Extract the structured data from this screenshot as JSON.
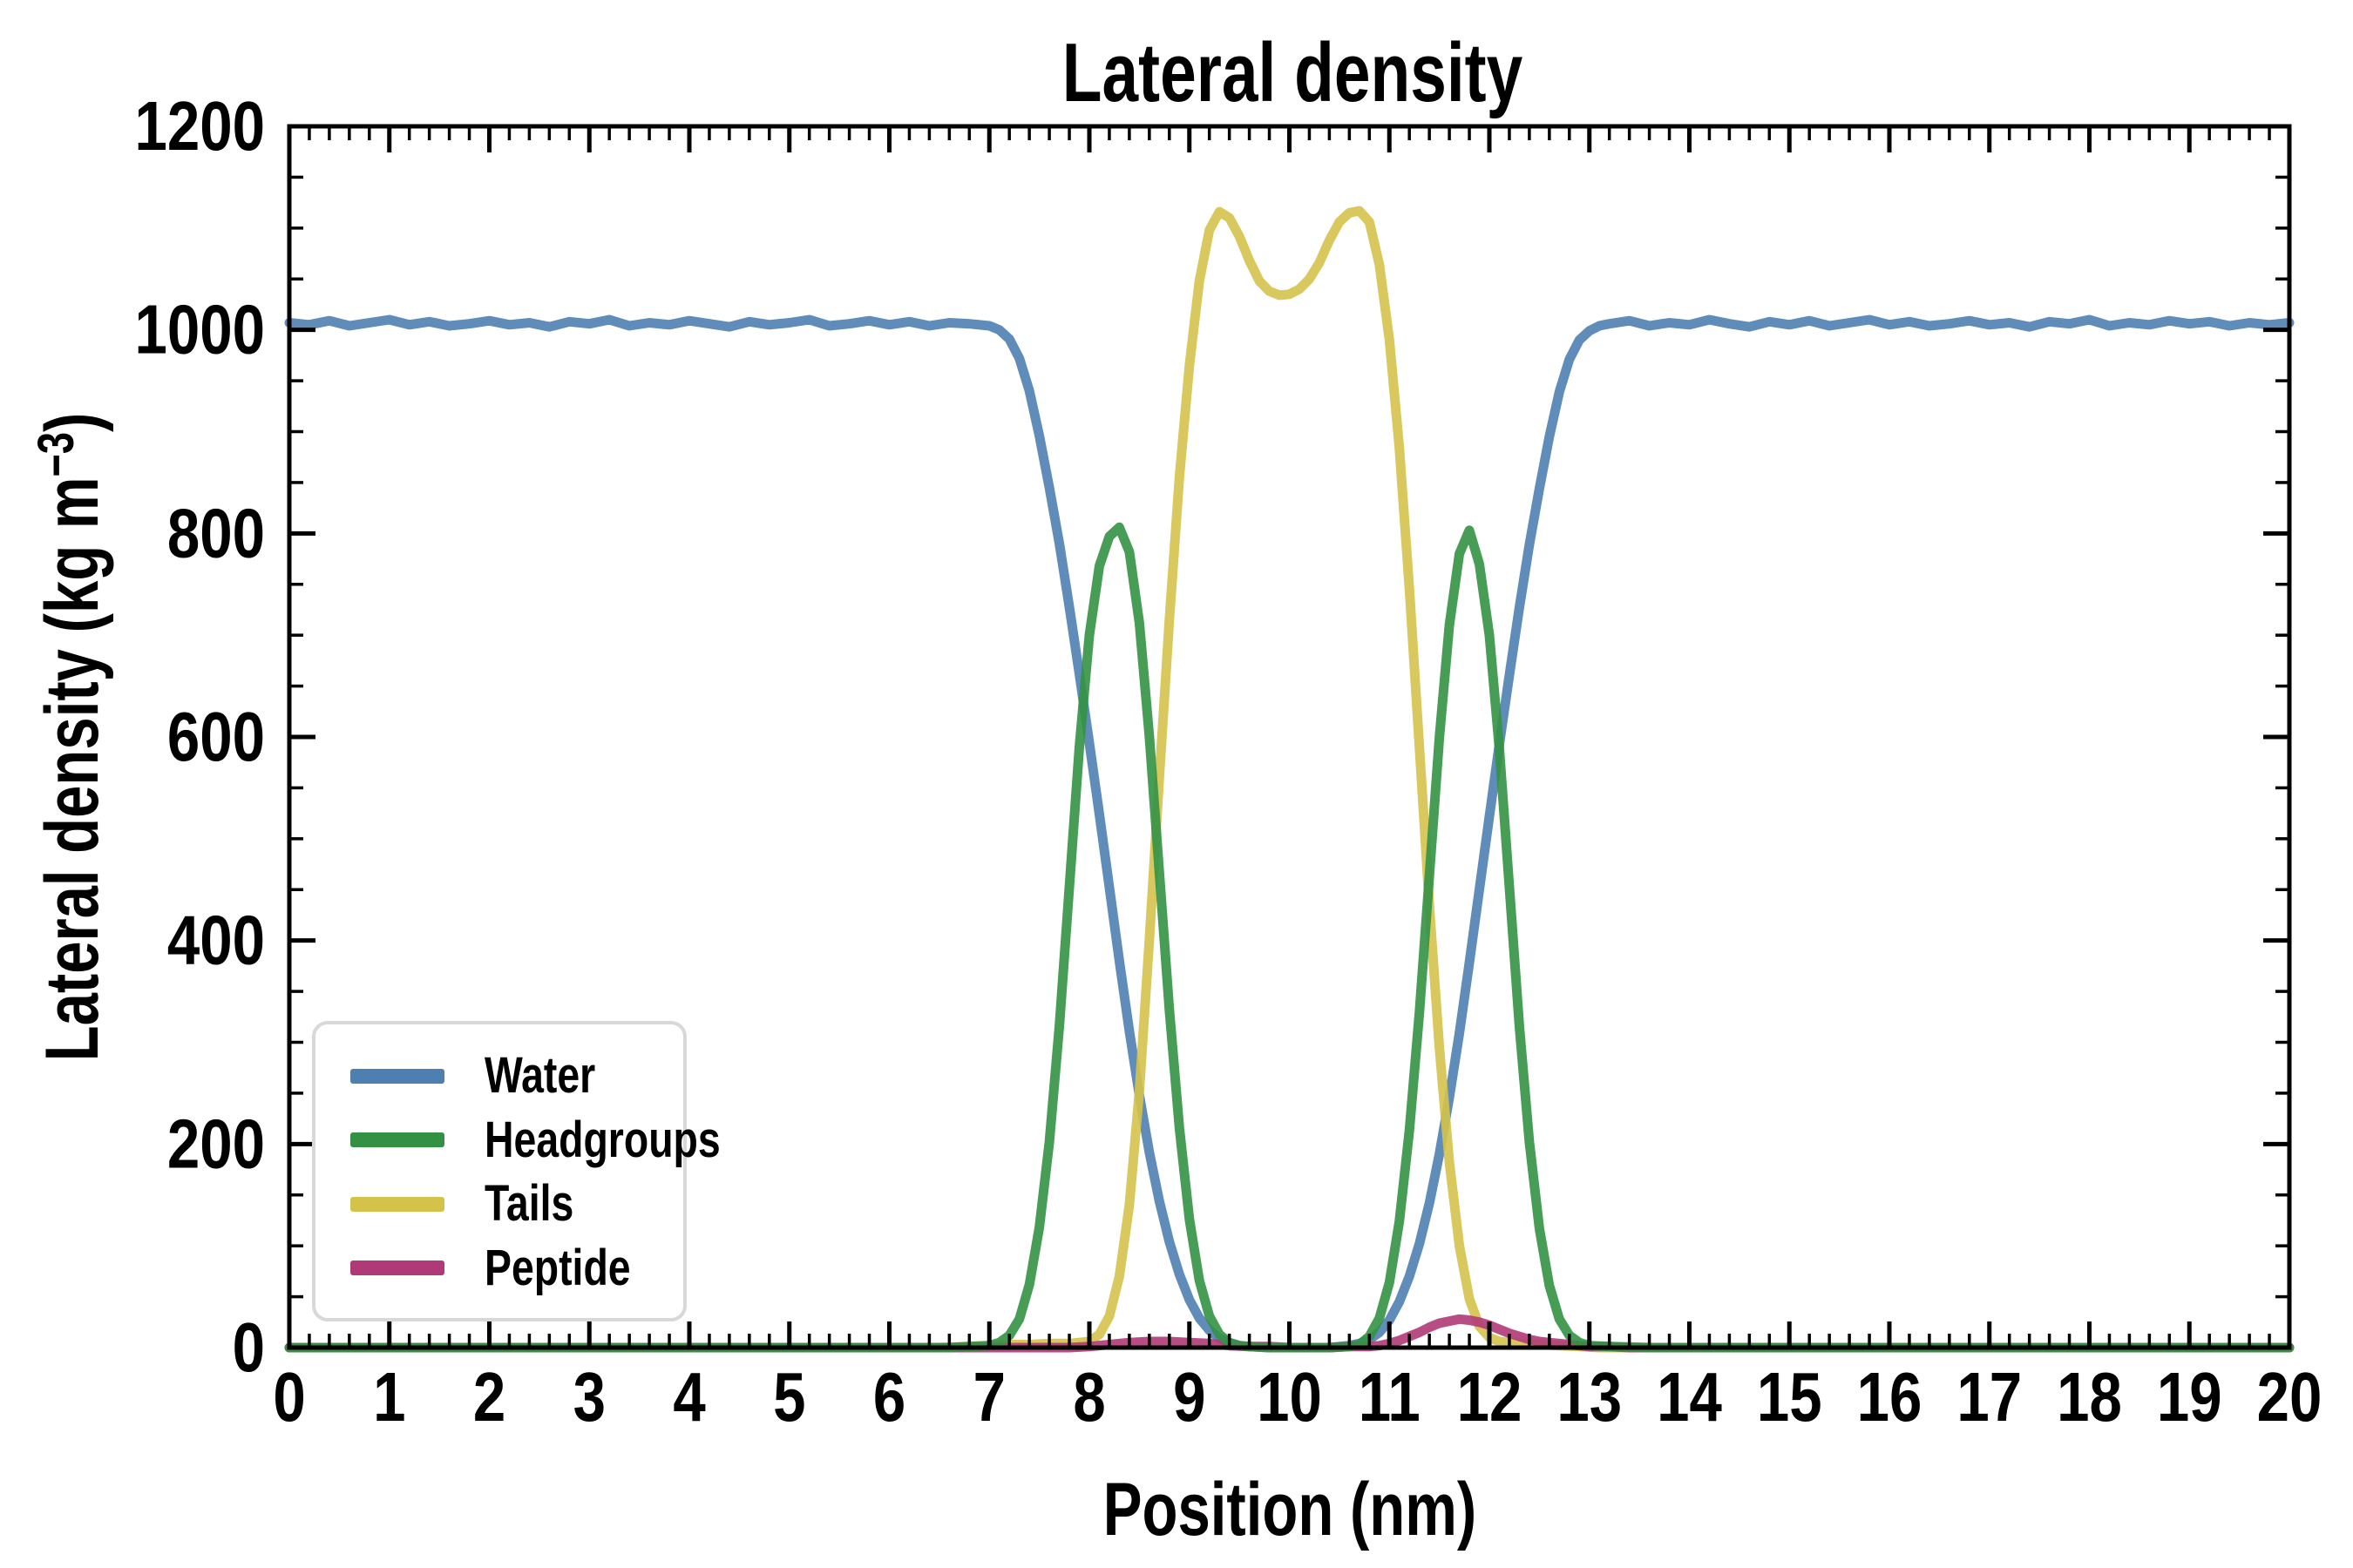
{
  "figure": {
    "title": "Lateral density"
  },
  "axes": {
    "x": {
      "label": "Position (nm)",
      "min": 0,
      "max": 20,
      "major_tick_step": 1,
      "minor_tick_step": 0.2,
      "tick_labels": [
        "0",
        "1",
        "2",
        "3",
        "4",
        "5",
        "6",
        "7",
        "8",
        "9",
        "10",
        "11",
        "12",
        "13",
        "14",
        "15",
        "16",
        "17",
        "18",
        "19",
        "20"
      ]
    },
    "y": {
      "label_base": "Lateral density (kg m",
      "label_sup": "−3",
      "label_end": ")",
      "min": 0,
      "max": 1200,
      "major_tick_step": 200,
      "minor_tick_step": 50,
      "tick_labels": [
        "0",
        "200",
        "400",
        "600",
        "800",
        "1000",
        "1200"
      ]
    }
  },
  "legend": {
    "entries": [
      {
        "label": "Water",
        "color": "#4e7fb1"
      },
      {
        "label": "Headgroups",
        "color": "#339144"
      },
      {
        "label": "Tails",
        "color": "#d5c24b"
      },
      {
        "label": "Peptide",
        "color": "#b03a78"
      }
    ]
  },
  "chart_data": {
    "type": "line",
    "title": "Lateral density",
    "xlabel": "Position (nm)",
    "ylabel": "Lateral density (kg m^-3)",
    "xlim": [
      0,
      20
    ],
    "ylim": [
      0,
      1200
    ],
    "grid": false,
    "legend_position": "lower left",
    "tick_style": "inward ticks on all four spines",
    "draw_order": [
      "Water",
      "Tails",
      "Peptide",
      "Headgroups"
    ],
    "series": [
      {
        "name": "Water",
        "color": "#4e7fb1",
        "x": [
          0,
          0.2,
          0.4,
          0.6,
          0.8,
          1,
          1.2,
          1.4,
          1.6,
          1.8,
          2,
          2.2,
          2.4,
          2.6,
          2.8,
          3,
          3.2,
          3.4,
          3.6,
          3.8,
          4,
          4.2,
          4.4,
          4.6,
          4.8,
          5,
          5.2,
          5.4,
          5.6,
          5.8,
          6,
          6.2,
          6.4,
          6.6,
          6.8,
          7,
          7.1,
          7.2,
          7.3,
          7.4,
          7.5,
          7.6,
          7.7,
          7.8,
          7.9,
          8,
          8.1,
          8.2,
          8.3,
          8.4,
          8.5,
          8.6,
          8.7,
          8.8,
          8.9,
          9,
          9.1,
          9.2,
          9.3,
          9.4,
          9.5,
          9.6,
          9.8,
          10,
          10.2,
          10.4,
          10.5,
          10.6,
          10.7,
          10.8,
          10.9,
          11,
          11.1,
          11.2,
          11.3,
          11.4,
          11.5,
          11.6,
          11.7,
          11.8,
          11.9,
          12,
          12.1,
          12.2,
          12.3,
          12.4,
          12.5,
          12.6,
          12.7,
          12.8,
          12.9,
          13,
          13.1,
          13.2,
          13.4,
          13.6,
          13.8,
          14,
          14.2,
          14.4,
          14.6,
          14.8,
          15,
          15.2,
          15.4,
          15.6,
          15.8,
          16,
          16.2,
          16.4,
          16.6,
          16.8,
          17,
          17.2,
          17.4,
          17.6,
          17.8,
          18,
          18.2,
          18.4,
          18.6,
          18.8,
          19,
          19.2,
          19.4,
          19.6,
          19.8,
          20
        ],
        "y": [
          1007,
          1005,
          1009,
          1004,
          1007,
          1010,
          1005,
          1008,
          1004,
          1006,
          1009,
          1005,
          1007,
          1003,
          1008,
          1006,
          1010,
          1004,
          1007,
          1005,
          1009,
          1006,
          1003,
          1008,
          1005,
          1007,
          1010,
          1004,
          1006,
          1009,
          1005,
          1008,
          1004,
          1007,
          1006,
          1004,
          1000,
          991,
          972,
          940,
          896,
          845,
          790,
          728,
          662,
          594,
          524,
          452,
          380,
          311,
          248,
          192,
          144,
          104,
          72,
          47,
          29,
          17,
          9,
          5,
          2,
          1,
          0,
          0,
          0,
          0,
          1,
          2,
          4,
          8,
          15,
          27,
          45,
          70,
          102,
          142,
          190,
          246,
          309,
          378,
          450,
          522,
          593,
          661,
          727,
          789,
          844,
          895,
          939,
          971,
          990,
          999,
          1004,
          1006,
          1009,
          1004,
          1007,
          1005,
          1010,
          1006,
          1003,
          1008,
          1005,
          1009,
          1004,
          1007,
          1010,
          1005,
          1008,
          1004,
          1006,
          1009,
          1005,
          1007,
          1003,
          1008,
          1006,
          1010,
          1004,
          1007,
          1005,
          1009,
          1006,
          1008,
          1004,
          1007,
          1005,
          1007
        ]
      },
      {
        "name": "Headgroups",
        "color": "#339144",
        "x": [
          0,
          1,
          2,
          3,
          4,
          5,
          6,
          6.6,
          6.8,
          7,
          7.1,
          7.2,
          7.3,
          7.4,
          7.5,
          7.6,
          7.7,
          7.8,
          7.9,
          8,
          8.1,
          8.2,
          8.3,
          8.4,
          8.5,
          8.6,
          8.7,
          8.8,
          8.9,
          9,
          9.1,
          9.2,
          9.3,
          9.4,
          9.5,
          9.6,
          9.8,
          10,
          10.2,
          10.4,
          10.6,
          10.7,
          10.8,
          10.9,
          11,
          11.1,
          11.2,
          11.3,
          11.4,
          11.5,
          11.6,
          11.7,
          11.8,
          11.9,
          12,
          12.1,
          12.2,
          12.3,
          12.4,
          12.5,
          12.6,
          12.7,
          12.8,
          12.9,
          13,
          13.2,
          13.6,
          14,
          15,
          16,
          17,
          18,
          19,
          20
        ],
        "y": [
          0,
          0,
          0,
          0,
          0,
          0,
          0,
          0,
          1,
          2,
          5,
          12,
          28,
          62,
          118,
          202,
          316,
          452,
          590,
          700,
          768,
          797,
          806,
          782,
          712,
          601,
          467,
          332,
          216,
          126,
          66,
          31,
          13,
          5,
          2,
          1,
          0,
          0,
          0,
          0,
          1,
          3,
          11,
          29,
          64,
          124,
          213,
          329,
          464,
          599,
          710,
          780,
          803,
          770,
          700,
          588,
          452,
          316,
          202,
          117,
          61,
          28,
          12,
          5,
          2,
          1,
          0,
          0,
          0,
          0,
          0,
          0,
          0,
          0
        ]
      },
      {
        "name": "Tails",
        "color": "#d5c24b",
        "x": [
          0,
          1,
          2,
          3,
          4,
          5,
          6,
          6.5,
          6.8,
          7,
          7.2,
          7.4,
          7.6,
          7.8,
          8,
          8.1,
          8.2,
          8.3,
          8.4,
          8.5,
          8.6,
          8.7,
          8.8,
          8.9,
          9,
          9.1,
          9.2,
          9.3,
          9.4,
          9.5,
          9.6,
          9.7,
          9.8,
          9.9,
          10,
          10.1,
          10.2,
          10.3,
          10.4,
          10.5,
          10.6,
          10.7,
          10.8,
          10.9,
          11,
          11.1,
          11.2,
          11.3,
          11.4,
          11.5,
          11.6,
          11.7,
          11.8,
          11.9,
          12,
          12.1,
          12.3,
          12.5,
          12.7,
          12.9,
          13.1,
          14,
          15,
          16,
          17,
          18,
          19,
          20
        ],
        "y": [
          0,
          0,
          0,
          0,
          0,
          0,
          0,
          0,
          1,
          2,
          3,
          3,
          4,
          4,
          6,
          13,
          31,
          70,
          140,
          252,
          400,
          560,
          715,
          855,
          965,
          1048,
          1098,
          1116,
          1110,
          1092,
          1068,
          1048,
          1038,
          1034,
          1035,
          1040,
          1050,
          1066,
          1088,
          1106,
          1115,
          1117,
          1106,
          1064,
          990,
          884,
          746,
          590,
          434,
          295,
          182,
          100,
          48,
          21,
          10,
          6,
          4,
          3,
          2,
          1,
          0,
          0,
          0,
          0,
          0,
          0,
          0,
          0
        ]
      },
      {
        "name": "Peptide",
        "color": "#b03a78",
        "x": [
          0,
          2,
          4,
          6,
          7.5,
          7.8,
          8,
          8.2,
          8.4,
          8.6,
          8.8,
          9,
          9.2,
          9.4,
          9.6,
          9.8,
          10,
          10.2,
          10.4,
          10.6,
          10.8,
          10.9,
          11,
          11.1,
          11.2,
          11.3,
          11.4,
          11.5,
          11.6,
          11.7,
          11.8,
          11.9,
          12,
          12.1,
          12.2,
          12.3,
          12.4,
          12.5,
          12.6,
          12.7,
          12.8,
          12.9,
          13,
          13.2,
          13.4,
          14,
          16,
          18,
          20
        ],
        "y": [
          0,
          0,
          0,
          0,
          0,
          0,
          1,
          3,
          5,
          6,
          6,
          5,
          4,
          2,
          1,
          1,
          0,
          0,
          0,
          1,
          1,
          2,
          4,
          7,
          11,
          15,
          20,
          24,
          26,
          28,
          27,
          25,
          22,
          18,
          14,
          11,
          8,
          6,
          5,
          4,
          3,
          2,
          1,
          1,
          0,
          0,
          0,
          0,
          0
        ]
      }
    ]
  }
}
